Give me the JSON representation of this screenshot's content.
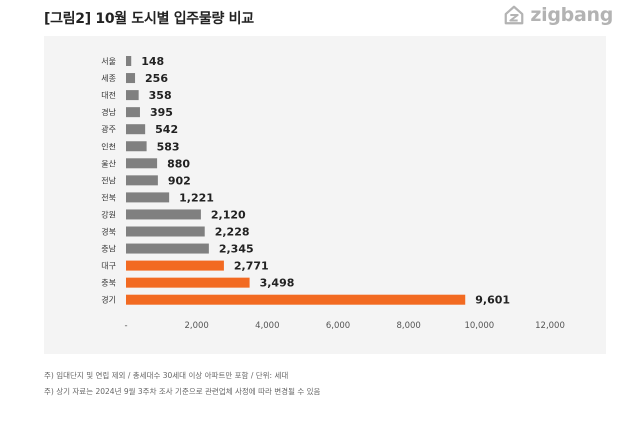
{
  "header": {
    "title": "[그림2] 10월 도시별 입주물량 비교",
    "logo_text": "zigbang",
    "logo_icon": "zigbang-house-icon"
  },
  "colors": {
    "default_bar": "#808080",
    "highlight_bar": "#f26a21",
    "panel_background": "#f4f4f4"
  },
  "chart_data": {
    "type": "bar",
    "orientation": "horizontal",
    "categories": [
      "서울",
      "세종",
      "대전",
      "경남",
      "광주",
      "인천",
      "울산",
      "전남",
      "전북",
      "강원",
      "경북",
      "충남",
      "대구",
      "충북",
      "경기"
    ],
    "values": [
      148,
      256,
      358,
      395,
      542,
      583,
      880,
      902,
      1221,
      2120,
      2228,
      2345,
      2771,
      3498,
      9601
    ],
    "value_labels": [
      "148",
      "256",
      "358",
      "395",
      "542",
      "583",
      "880",
      "902",
      "1,221",
      "2,120",
      "2,228",
      "2,345",
      "2,771",
      "3,498",
      "9,601"
    ],
    "highlighted": [
      false,
      false,
      false,
      false,
      false,
      false,
      false,
      false,
      false,
      false,
      false,
      false,
      true,
      true,
      true
    ],
    "xlim": [
      0,
      12000
    ],
    "x_ticks": [
      0,
      2000,
      4000,
      6000,
      8000,
      10000,
      12000
    ],
    "x_tick_labels": [
      "-",
      "2,000",
      "4,000",
      "6,000",
      "8,000",
      "10,000",
      "12,000"
    ],
    "grid": false,
    "title": "",
    "xlabel": "",
    "ylabel": ""
  },
  "footnotes": [
    "주) 임대단지 및 연립 제외 / 총세대수 30세대 이상 아파트만 포함 / 단위: 세대",
    "주) 상기 자료는 2024년 9월 3주차 조사 기준으로 관련업체 사정에 따라 변경될 수 있음"
  ]
}
